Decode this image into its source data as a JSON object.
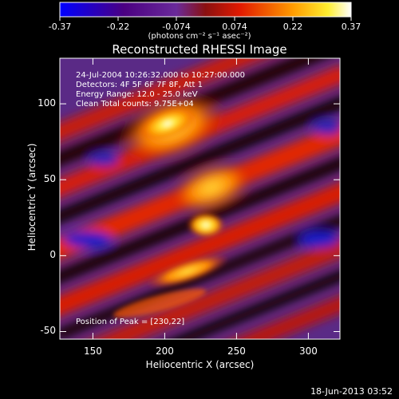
{
  "colorbar": {
    "ticks": [
      "-0.37",
      "-0.22",
      "-0.074",
      "0.074",
      "0.22",
      "0.37"
    ],
    "units_text": "(photons cm⁻² s⁻¹ asec⁻²)"
  },
  "chart_data": {
    "type": "heatmap",
    "title": "Reconstructed RHESSI Image",
    "xlabel": "Heliocentric X (arcsec)",
    "ylabel": "Heliocentric Y (arcsec)",
    "xlim": [
      127,
      322
    ],
    "ylim": [
      -55,
      130
    ],
    "xticks": [
      150,
      200,
      250,
      300
    ],
    "yticks": [
      -50,
      0,
      50,
      100
    ],
    "value_range": [
      -0.37,
      0.37
    ],
    "colormap": "blue-purple-red-orange-yellow-white (IDL Rainbow-like)",
    "peak_position": [
      230,
      22
    ],
    "annotations": [
      "24-Jul-2004 10:26:32.000 to 10:27:00.000",
      "Detectors: 4F 5F 6F 7F 8F, Att 1",
      "Energy Range: 12.0 - 25.0 keV",
      "Clean     Total counts: 9.75E+04"
    ],
    "peak_label": "Position of Peak = [230,22]"
  },
  "footer": {
    "datestamp": "18-Jun-2013 03:52"
  }
}
